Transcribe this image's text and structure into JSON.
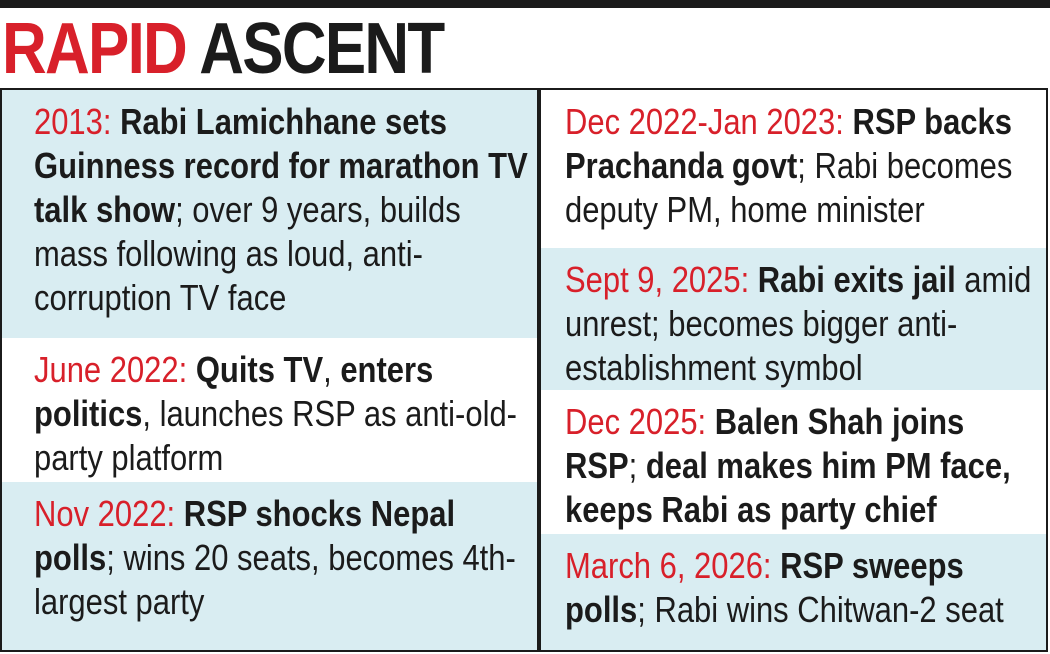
{
  "title": {
    "part1": "RAPID",
    "part2": "ASCENT"
  },
  "colors": {
    "accent_red": "#d8202a",
    "panel_blue": "#d9edf2",
    "ink": "#1b1b1b"
  },
  "left_entries": [
    {
      "date": "2013:",
      "bold": "Rabi Lamichhane sets Guinness record for marathon TV talk show",
      "rest": "; over 9 years, builds mass following as loud, anti-corruption TV face"
    },
    {
      "date": "June 2022:",
      "bold": "Quits TV",
      "mid": ", ",
      "bold2": "enters politics",
      "rest": ", launches RSP as anti-old-party platform"
    },
    {
      "date": "Nov 2022:",
      "bold": "RSP shocks Nepal polls",
      "rest": "; wins 20 seats, becomes 4th-largest party"
    }
  ],
  "right_entries": [
    {
      "date": "Dec 2022-Jan 2023:",
      "bold": "RSP backs Prachanda govt",
      "rest": "; Rabi becomes deputy PM, home minister"
    },
    {
      "date": "Sept 9, 2025:",
      "bold": "Rabi exits jail",
      "rest": " amid unrest; becomes bigger anti-establishment symbol"
    },
    {
      "date": "Dec 2025:",
      "bold": "Balen Shah joins RSP",
      "rest": "; ",
      "bold2": "deal makes him PM face, keeps Rabi as party chief"
    },
    {
      "date": "March 6, 2026:",
      "bold": "RSP sweeps polls",
      "rest": "; Rabi wins Chitwan-2 seat"
    }
  ]
}
